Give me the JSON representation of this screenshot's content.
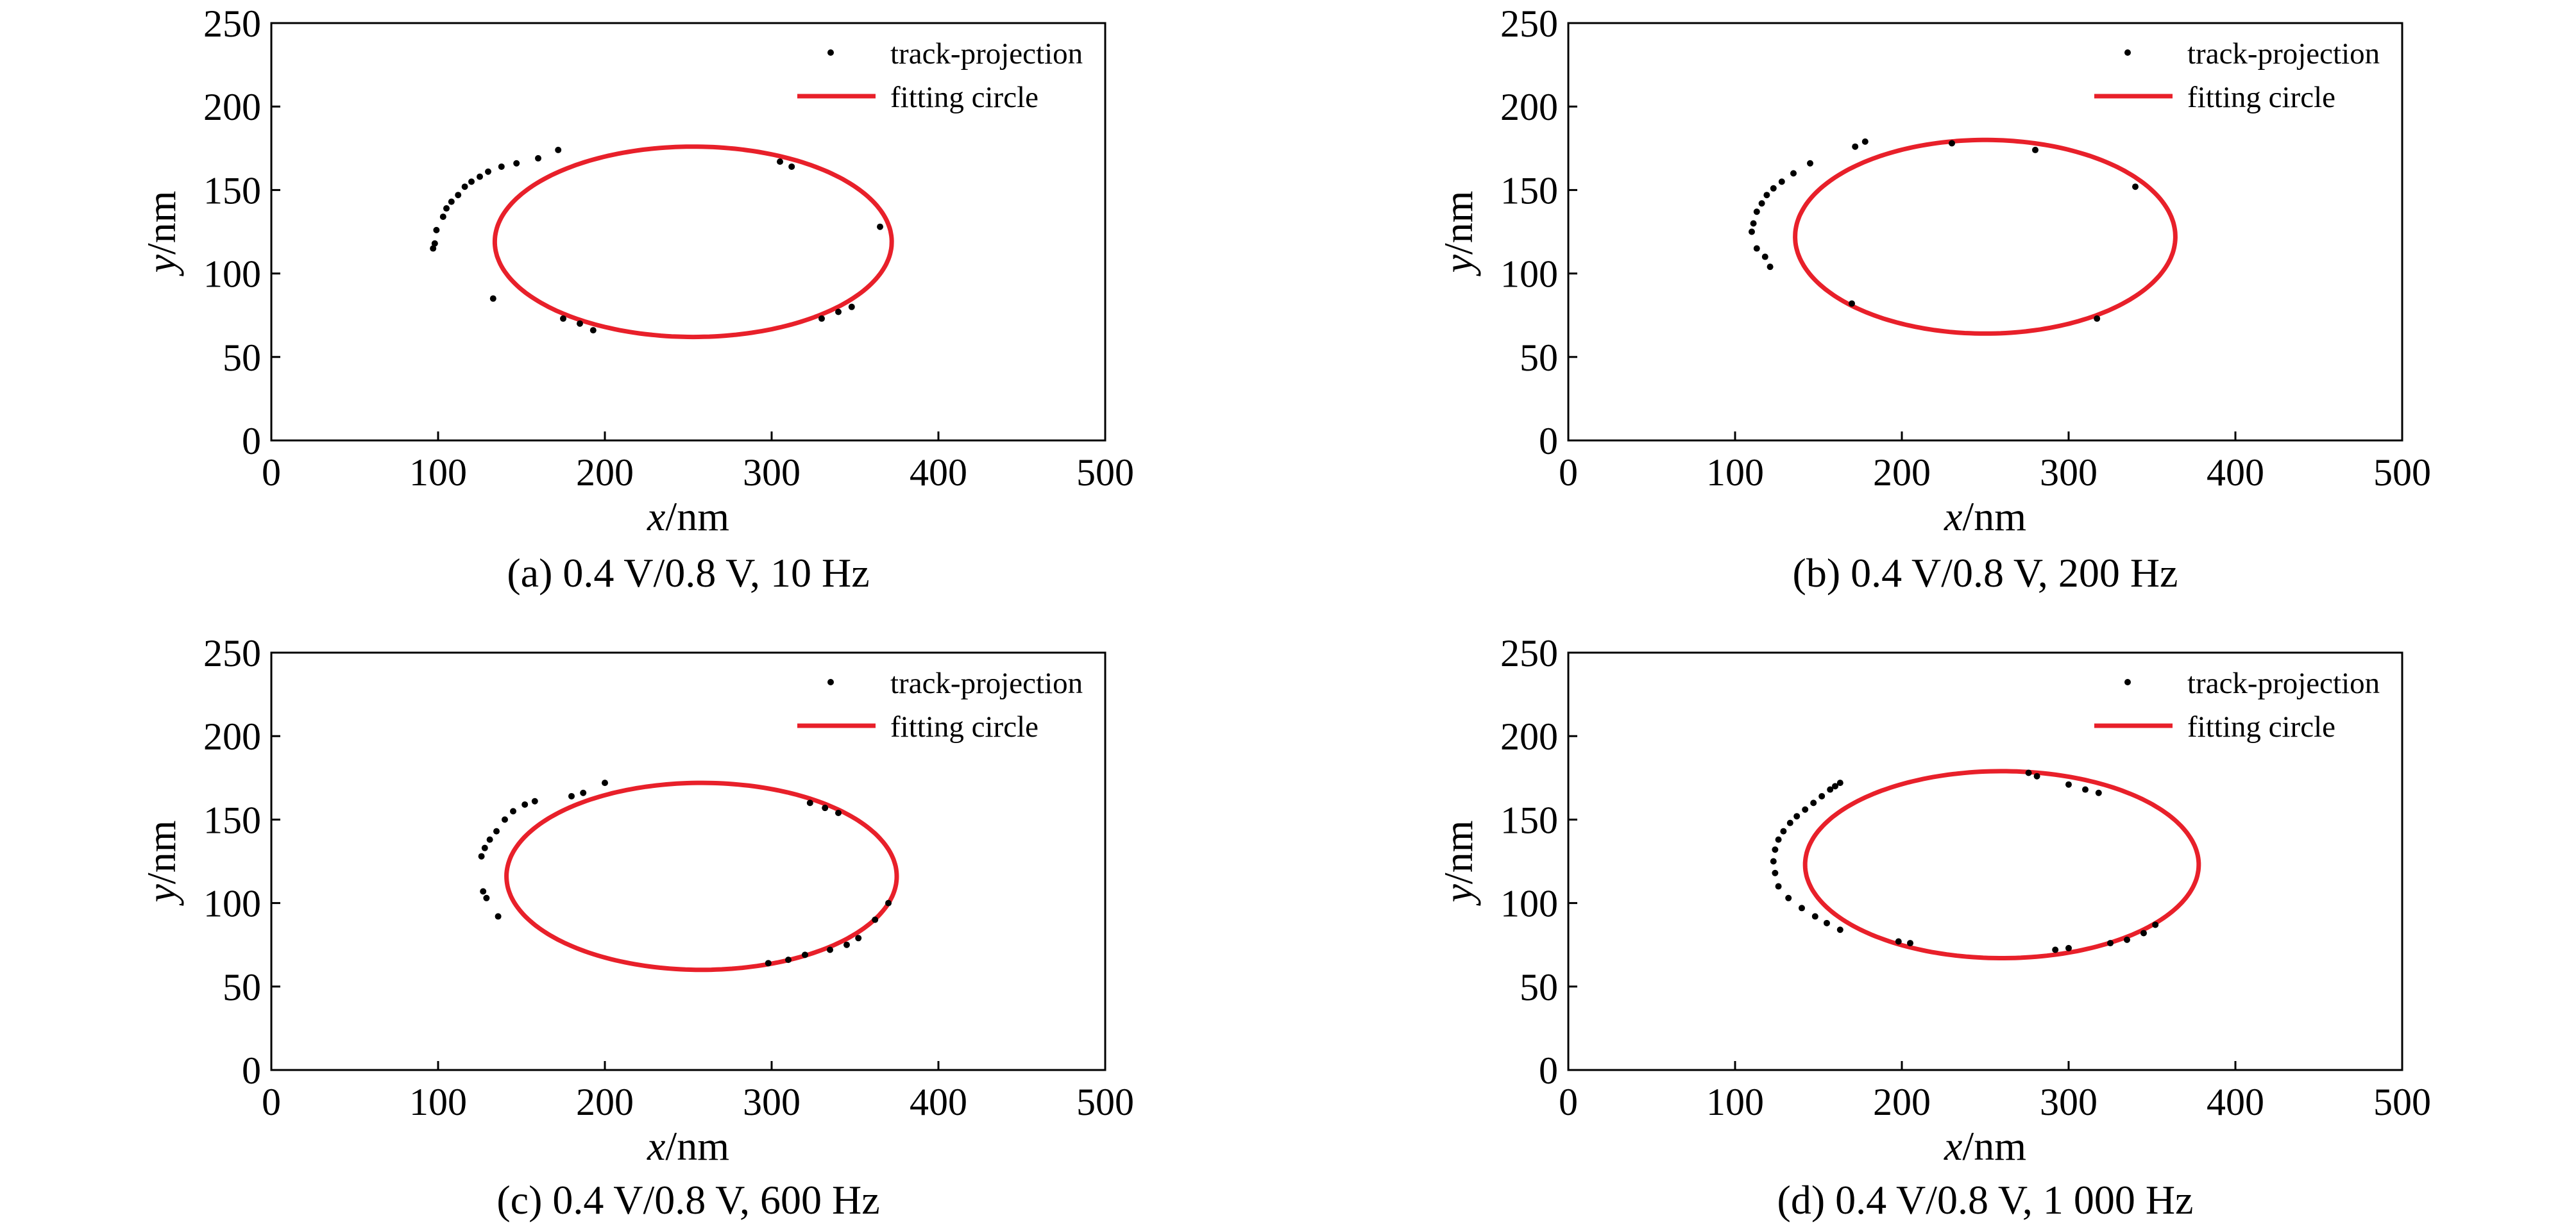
{
  "colors": {
    "fit": "#e8202a",
    "points": "#000000",
    "axes": "#000000",
    "background": "#ffffff"
  },
  "legend": {
    "points_label": "track-projection",
    "fit_label": "fitting circle",
    "placement": "top-right"
  },
  "chart_data": [
    {
      "type": "scatter",
      "caption": "(a) 0.4 V/0.8 V, 10 Hz",
      "xlabel": {
        "italic": "x",
        "unit": "/nm"
      },
      "ylabel": {
        "italic": "y",
        "unit": "/nm"
      },
      "xlim": [
        0,
        500
      ],
      "ylim": [
        0,
        250
      ],
      "xticks": [
        "0",
        "100",
        "200",
        "300",
        "400",
        "500"
      ],
      "yticks": [
        "0",
        "50",
        "100",
        "150",
        "200",
        "250"
      ],
      "grid": false,
      "fit": {
        "cx": 253,
        "cy": 119,
        "rx": 119,
        "ry": 57,
        "gap": [
          195,
          283
        ]
      },
      "points": [
        [
          97,
          115
        ],
        [
          98,
          118
        ],
        [
          99,
          126
        ],
        [
          103,
          134
        ],
        [
          105,
          139
        ],
        [
          108,
          143
        ],
        [
          112,
          147
        ],
        [
          116,
          152
        ],
        [
          120,
          155
        ],
        [
          125,
          158
        ],
        [
          130,
          161
        ],
        [
          138,
          164
        ],
        [
          147,
          166
        ],
        [
          160,
          169
        ],
        [
          172,
          174
        ],
        [
          305,
          167
        ],
        [
          312,
          164
        ],
        [
          365,
          128
        ],
        [
          348,
          80
        ],
        [
          340,
          77
        ],
        [
          330,
          73
        ],
        [
          193,
          66
        ],
        [
          185,
          70
        ],
        [
          175,
          73
        ],
        [
          133,
          85
        ]
      ]
    },
    {
      "type": "scatter",
      "caption": "(b) 0.4 V/0.8 V, 200 Hz",
      "xlabel": {
        "italic": "x",
        "unit": "/nm"
      },
      "ylabel": {
        "italic": "y",
        "unit": "/nm"
      },
      "xlim": [
        0,
        500
      ],
      "ylim": [
        0,
        250
      ],
      "xticks": [
        "0",
        "100",
        "200",
        "300",
        "400",
        "500"
      ],
      "yticks": [
        "0",
        "50",
        "100",
        "150",
        "200",
        "250"
      ],
      "grid": false,
      "fit": {
        "cx": 250,
        "cy": 122,
        "rx": 114,
        "ry": 58,
        "gap": [
          201,
          279
        ]
      },
      "points": [
        [
          110,
          125
        ],
        [
          111,
          130
        ],
        [
          113,
          137
        ],
        [
          116,
          142
        ],
        [
          119,
          147
        ],
        [
          123,
          151
        ],
        [
          128,
          155
        ],
        [
          135,
          160
        ],
        [
          145,
          166
        ],
        [
          172,
          176
        ],
        [
          178,
          179
        ],
        [
          230,
          178
        ],
        [
          280,
          174
        ],
        [
          340,
          152
        ],
        [
          317,
          73
        ],
        [
          170,
          82
        ],
        [
          121,
          104
        ],
        [
          118,
          110
        ],
        [
          113,
          115
        ]
      ]
    },
    {
      "type": "scatter",
      "caption": "(c) 0.4 V/0.8 V, 600 Hz",
      "xlabel": {
        "italic": "x",
        "unit": "/nm"
      },
      "ylabel": {
        "italic": "y",
        "unit": "/nm"
      },
      "xlim": [
        0,
        500
      ],
      "ylim": [
        0,
        250
      ],
      "xticks": [
        "0",
        "100",
        "200",
        "300",
        "400",
        "500"
      ],
      "yticks": [
        "0",
        "50",
        "100",
        "150",
        "200",
        "250"
      ],
      "grid": false,
      "fit": {
        "cx": 258,
        "cy": 116,
        "rx": 117,
        "ry": 56,
        "gap": [
          212,
          292
        ]
      },
      "points": [
        [
          126,
          128
        ],
        [
          128,
          133
        ],
        [
          131,
          138
        ],
        [
          135,
          143
        ],
        [
          140,
          150
        ],
        [
          145,
          155
        ],
        [
          152,
          159
        ],
        [
          158,
          161
        ],
        [
          180,
          164
        ],
        [
          187,
          166
        ],
        [
          200,
          172
        ],
        [
          323,
          160
        ],
        [
          332,
          157
        ],
        [
          340,
          154
        ],
        [
          370,
          100
        ],
        [
          362,
          90
        ],
        [
          352,
          79
        ],
        [
          345,
          75
        ],
        [
          335,
          72
        ],
        [
          320,
          69
        ],
        [
          310,
          66
        ],
        [
          298,
          64
        ],
        [
          136,
          92
        ],
        [
          129,
          103
        ],
        [
          127,
          107
        ]
      ]
    },
    {
      "type": "scatter",
      "caption": "(d) 0.4 V/0.8 V, 1 000 Hz",
      "xlabel": {
        "italic": "x",
        "unit": "/nm"
      },
      "ylabel": {
        "italic": "y",
        "unit": "/nm"
      },
      "xlim": [
        0,
        500
      ],
      "ylim": [
        0,
        250
      ],
      "xticks": [
        "0",
        "100",
        "200",
        "300",
        "400",
        "500"
      ],
      "yticks": [
        "0",
        "50",
        "100",
        "150",
        "200",
        "250"
      ],
      "grid": false,
      "fit": {
        "cx": 260,
        "cy": 123,
        "rx": 118,
        "ry": 56,
        "gap": [
          208,
          286
        ]
      },
      "points": [
        [
          123,
          125
        ],
        [
          124,
          132
        ],
        [
          126,
          138
        ],
        [
          129,
          143
        ],
        [
          133,
          148
        ],
        [
          137,
          152
        ],
        [
          142,
          156
        ],
        [
          147,
          160
        ],
        [
          152,
          164
        ],
        [
          157,
          168
        ],
        [
          160,
          170
        ],
        [
          163,
          172
        ],
        [
          276,
          178
        ],
        [
          281,
          176
        ],
        [
          300,
          171
        ],
        [
          310,
          168
        ],
        [
          318,
          166
        ],
        [
          352,
          87
        ],
        [
          345,
          82
        ],
        [
          335,
          78
        ],
        [
          325,
          76
        ],
        [
          300,
          73
        ],
        [
          292,
          72
        ],
        [
          205,
          76
        ],
        [
          198,
          77
        ],
        [
          163,
          84
        ],
        [
          155,
          88
        ],
        [
          148,
          92
        ],
        [
          140,
          97
        ],
        [
          132,
          103
        ],
        [
          126,
          110
        ],
        [
          124,
          118
        ]
      ]
    }
  ]
}
